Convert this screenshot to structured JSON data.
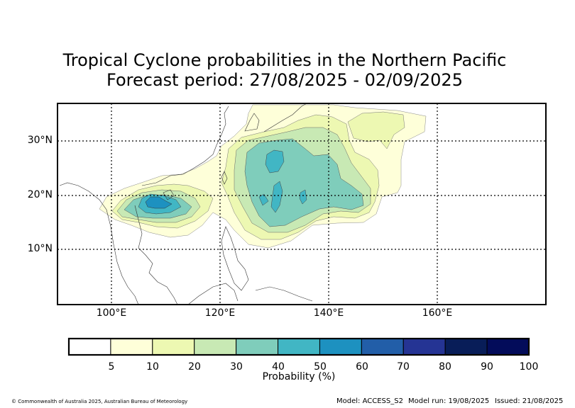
{
  "title_line1": "Tropical Cyclone probabilities in the Northern Pacific",
  "title_line2": "Forecast period: 27/08/2025 - 02/09/2025",
  "map": {
    "lon_range": [
      90,
      180
    ],
    "lat_range": [
      0,
      37
    ],
    "lat_ticks": [
      {
        "value": 30,
        "label": "30°N"
      },
      {
        "value": 20,
        "label": "20°N"
      },
      {
        "value": 10,
        "label": "10°N"
      }
    ],
    "lon_ticks": [
      {
        "value": 100,
        "label": "100°E"
      },
      {
        "value": 120,
        "label": "120°E"
      },
      {
        "value": 140,
        "label": "140°E"
      },
      {
        "value": 160,
        "label": "160°E"
      }
    ],
    "gridlines": "dotted"
  },
  "colorbar": {
    "label": "Probability (%)",
    "ticks": [
      "5",
      "10",
      "20",
      "30",
      "40",
      "50",
      "60",
      "70",
      "80",
      "90",
      "100"
    ],
    "colors": [
      "#ffffff",
      "#feffd9",
      "#edf8b2",
      "#c8e9b4",
      "#7fcdbb",
      "#41b6c4",
      "#1d91c0",
      "#225ea8",
      "#253494",
      "#081d58",
      "#030c5a"
    ]
  },
  "footer": {
    "copyright": "© Commonwealth of Australia 2025, Australian Bureau of Meteorology",
    "model": "Model: ACCESS_S2",
    "model_run": "Model run: 19/08/2025",
    "issued": "Issued: 21/08/2025"
  }
}
